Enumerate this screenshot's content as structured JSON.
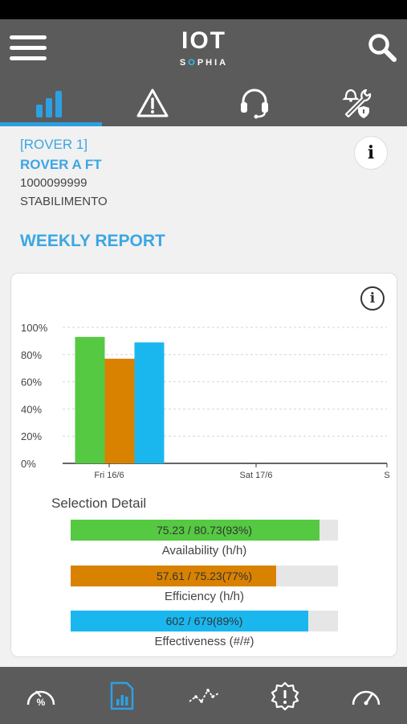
{
  "header": {
    "logo_main": "IOT",
    "logo_sub_before": "S",
    "logo_sub_o": "O",
    "logo_sub_after": "PHIA"
  },
  "tabs": [
    {
      "icon": "bar-chart-icon",
      "active": true
    },
    {
      "icon": "warning-icon",
      "active": false
    },
    {
      "icon": "headset-icon",
      "active": false
    },
    {
      "icon": "maintenance-icon",
      "active": false
    }
  ],
  "machine": {
    "code": "[ROVER 1]",
    "name": "ROVER A FT",
    "serial": "1000099999",
    "plant": "STABILIMENTO"
  },
  "info_button_label": "i",
  "report_title": "WEEKLY REPORT",
  "card_info_label": "i",
  "chart_data": {
    "type": "bar",
    "categories": [
      "Fri 16/6",
      "Sat 17/6",
      "S"
    ],
    "y_ticks": [
      "100%",
      "80%",
      "60%",
      "40%",
      "20%",
      "0%"
    ],
    "ylim": [
      0,
      100
    ],
    "grid": true,
    "series": [
      {
        "color": "#55c942",
        "values": [
          93,
          null,
          null
        ]
      },
      {
        "color": "#d98200",
        "values": [
          77,
          null,
          null
        ]
      },
      {
        "color": "#1ab7ef",
        "values": [
          89,
          null,
          null
        ]
      }
    ]
  },
  "selection_detail": {
    "title": "Selection Detail",
    "rows": [
      {
        "text": "75.23 / 80.73(93%)",
        "label": "Availability (h/h)",
        "fraction": 0.93,
        "color": "#55c942"
      },
      {
        "text": "57.61 / 75.23(77%)",
        "label": "Efficiency (h/h)",
        "fraction": 0.77,
        "color": "#d98200"
      },
      {
        "text": "602 / 679(89%)",
        "label": "Effectiveness (#/#)",
        "fraction": 0.89,
        "color": "#1ab7ef"
      }
    ]
  },
  "bottom_nav": [
    {
      "icon": "gauge-percent-icon"
    },
    {
      "icon": "report-document-icon",
      "active": true
    },
    {
      "icon": "trend-line-icon"
    },
    {
      "icon": "alert-gear-icon"
    },
    {
      "icon": "speedometer-icon"
    }
  ],
  "colors": {
    "accent": "#3ca6e4",
    "header": "#5b5b5b",
    "availability": "#55c942",
    "efficiency": "#d98200",
    "effectiveness": "#1ab7ef"
  }
}
